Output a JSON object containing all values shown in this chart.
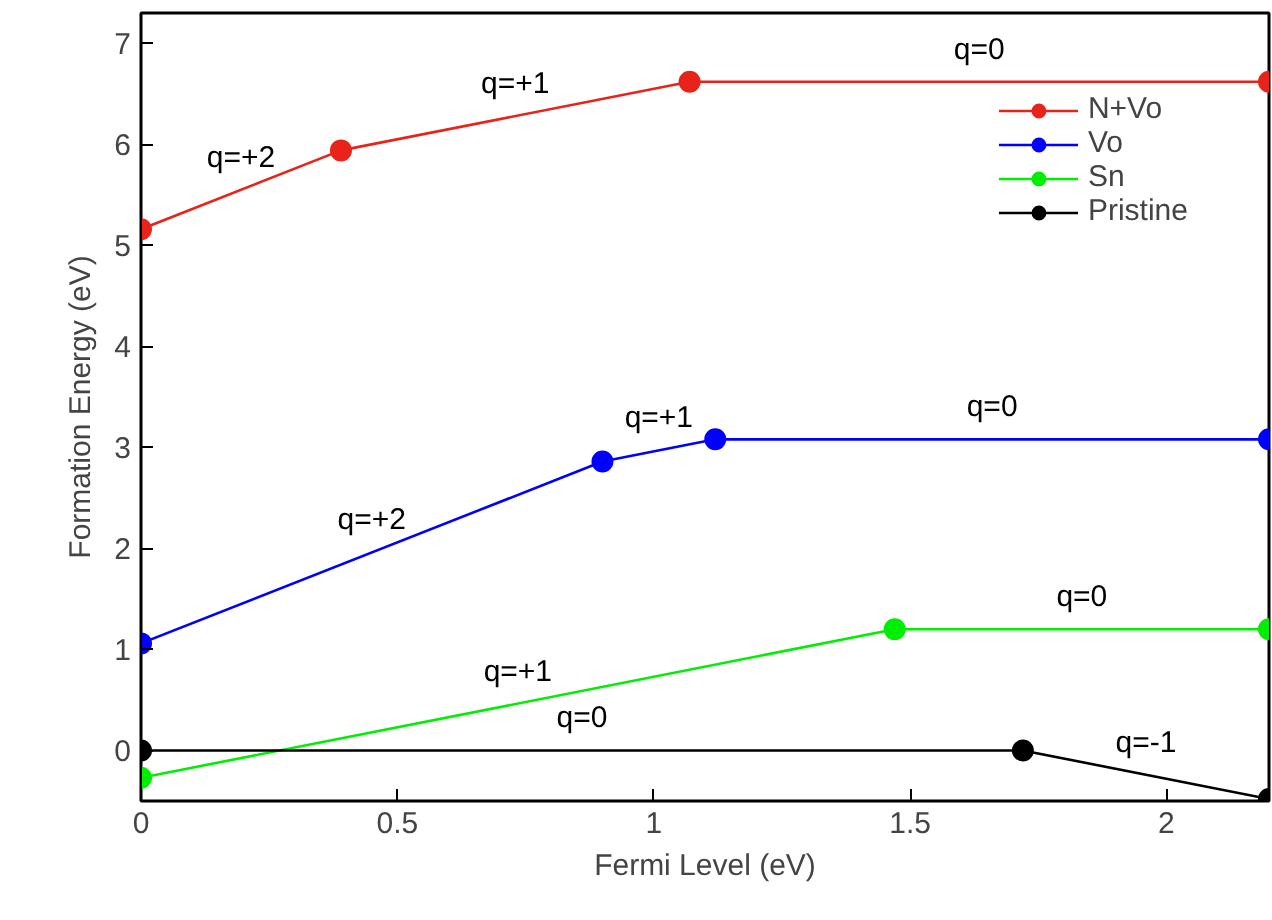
{
  "chart_data": {
    "type": "line",
    "xlabel": "Fermi Level (eV)",
    "ylabel": "Formation Energy (eV)",
    "xlim": [
      0,
      2.2
    ],
    "ylim": [
      -0.5,
      7.3
    ],
    "xticks": [
      0,
      0.5,
      1,
      1.5,
      2
    ],
    "yticks": [
      0,
      1,
      2,
      3,
      4,
      5,
      6,
      7
    ],
    "grid": false,
    "legend": "top right",
    "marker": "circle",
    "line_style": "solid",
    "series": [
      {
        "name": "N+Vo",
        "color": "#e8231a",
        "x": [
          0,
          0.39,
          1.07,
          2.2
        ],
        "values": [
          5.16,
          5.94,
          6.62,
          6.62
        ]
      },
      {
        "name": "Vo",
        "color": "#0000ff",
        "x": [
          0,
          0.9,
          1.12,
          2.2
        ],
        "values": [
          1.06,
          2.86,
          3.08,
          3.08
        ]
      },
      {
        "name": "Sn",
        "color": "#00ee00",
        "x": [
          0,
          1.47,
          2.2
        ],
        "values": [
          -0.27,
          1.2,
          1.2
        ]
      },
      {
        "name": "Pristine",
        "color": "#000000",
        "x": [
          0,
          1.72,
          2.2
        ],
        "values": [
          0,
          0,
          -0.48
        ]
      }
    ],
    "annotations": [
      "q=+2",
      "q=+1",
      "q=0",
      "q=+2",
      "q=+1",
      "q=0",
      "q=+1",
      "q=0",
      "q=0",
      "q=-1"
    ]
  }
}
